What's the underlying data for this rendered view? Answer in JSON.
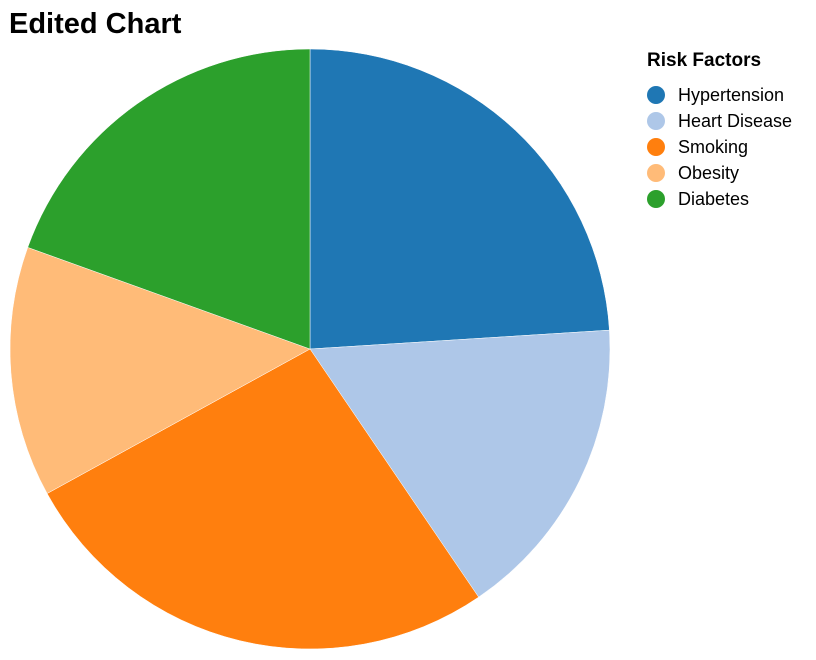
{
  "chart_data": {
    "type": "pie",
    "title": "Edited Chart",
    "legend_title": "Risk Factors",
    "legend_position": "top-right",
    "categories": [
      "Hypertension",
      "Heart Disease",
      "Smoking",
      "Obesity",
      "Diabetes"
    ],
    "values": [
      24,
      16.5,
      26.5,
      13.5,
      19.5
    ],
    "colors": [
      "#1f77b4",
      "#aec7e8",
      "#ff7f0e",
      "#ffbb78",
      "#2ca02c"
    ]
  }
}
